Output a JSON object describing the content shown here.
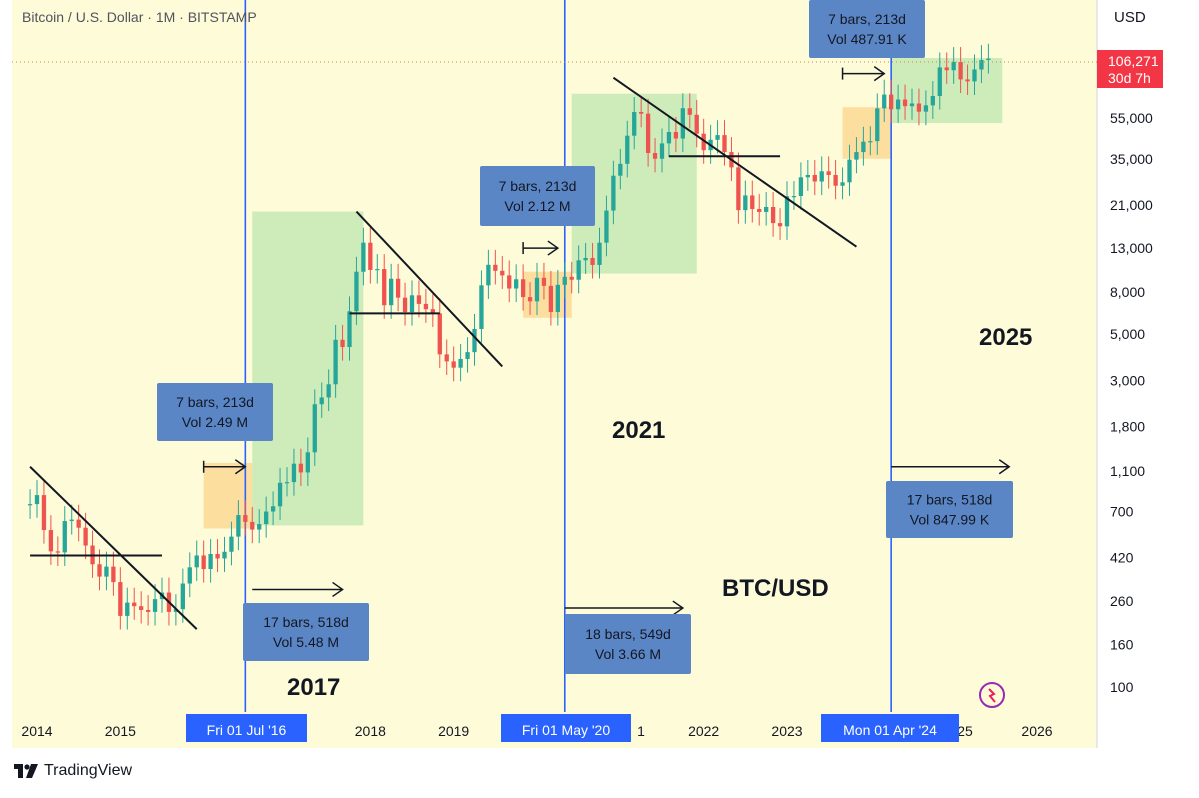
{
  "header": {
    "symbol_line": "Bitcoin / U.S. Dollar · 1M · BITSTAMP",
    "currency": "USD"
  },
  "price_badge": {
    "price": "106,271",
    "countdown": "30d 7h",
    "color": "#f23645"
  },
  "footer": {
    "brand": "TradingView"
  },
  "colors": {
    "background": "#fefbd8",
    "up": "#26a69a",
    "down": "#ef5350",
    "green_box": "#c6e9b4",
    "orange_box": "#fbd995",
    "vline": "#2962ff",
    "label_box": "#5b86c6",
    "date_badge": "#2962ff"
  },
  "chart_data": {
    "type": "candlestick",
    "title": "BTC/USD",
    "xlabel": "",
    "ylabel": "",
    "y_scale": "log",
    "price_axis_ticks": [
      "55,000",
      "35,000",
      "21,000",
      "13,000",
      "8,000",
      "5,000",
      "3,000",
      "1,800",
      "1,100",
      "700",
      "420",
      "260",
      "160",
      "100"
    ],
    "time_axis_ticks": [
      "2014",
      "2015",
      "2018",
      "2019",
      "2022",
      "2023",
      "2026"
    ],
    "time_axis_badges": [
      "Fri 01 Jul '16",
      "Fri 01 May '20",
      "Mon 01 Apr '24"
    ],
    "partial_time_ticks": [
      "1",
      "25"
    ],
    "vertical_lines": [
      "2016-07",
      "2020-05",
      "2024-04"
    ],
    "last_price": 106271,
    "cycle_labels": [
      "2017",
      "2021",
      "2025"
    ],
    "measure_labels": [
      {
        "line1": "7 bars, 213d",
        "line2": "Vol 2.49 M"
      },
      {
        "line1": "17 bars, 518d",
        "line2": "Vol 5.48 M"
      },
      {
        "line1": "7 bars, 213d",
        "line2": "Vol 2.12 M"
      },
      {
        "line1": "18 bars, 549d",
        "line2": "Vol 3.66 M"
      },
      {
        "line1": "7 bars, 213d",
        "line2": "Vol 487.91 K"
      },
      {
        "line1": "17 bars, 518d",
        "line2": "Vol 847.99 K"
      }
    ],
    "candles_up_colored": "green",
    "candles_down_colored": "red",
    "monthly_closes": [
      {
        "t": "2013-12",
        "o": 750,
        "c": 760
      },
      {
        "t": "2014-01",
        "o": 760,
        "c": 840
      },
      {
        "t": "2014-02",
        "o": 840,
        "c": 570
      },
      {
        "t": "2014-03",
        "o": 570,
        "c": 450
      },
      {
        "t": "2014-04",
        "o": 450,
        "c": 445
      },
      {
        "t": "2014-05",
        "o": 445,
        "c": 630
      },
      {
        "t": "2014-06",
        "o": 630,
        "c": 640
      },
      {
        "t": "2014-07",
        "o": 640,
        "c": 585
      },
      {
        "t": "2014-08",
        "o": 585,
        "c": 480
      },
      {
        "t": "2014-09",
        "o": 480,
        "c": 390
      },
      {
        "t": "2014-10",
        "o": 390,
        "c": 340
      },
      {
        "t": "2014-11",
        "o": 340,
        "c": 380
      },
      {
        "t": "2014-12",
        "o": 380,
        "c": 320
      },
      {
        "t": "2015-01",
        "o": 320,
        "c": 220
      },
      {
        "t": "2015-02",
        "o": 220,
        "c": 255
      },
      {
        "t": "2015-03",
        "o": 255,
        "c": 245
      },
      {
        "t": "2015-04",
        "o": 245,
        "c": 235
      },
      {
        "t": "2015-05",
        "o": 235,
        "c": 230
      },
      {
        "t": "2015-06",
        "o": 230,
        "c": 265
      },
      {
        "t": "2015-07",
        "o": 265,
        "c": 285
      },
      {
        "t": "2015-08",
        "o": 285,
        "c": 230
      },
      {
        "t": "2015-09",
        "o": 230,
        "c": 237
      },
      {
        "t": "2015-10",
        "o": 237,
        "c": 315
      },
      {
        "t": "2015-11",
        "o": 315,
        "c": 377
      },
      {
        "t": "2015-12",
        "o": 377,
        "c": 430
      },
      {
        "t": "2016-01",
        "o": 430,
        "c": 370
      },
      {
        "t": "2016-02",
        "o": 370,
        "c": 437
      },
      {
        "t": "2016-03",
        "o": 437,
        "c": 416
      },
      {
        "t": "2016-04",
        "o": 416,
        "c": 448
      },
      {
        "t": "2016-05",
        "o": 448,
        "c": 530
      },
      {
        "t": "2016-06",
        "o": 530,
        "c": 673
      },
      {
        "t": "2016-07",
        "o": 673,
        "c": 624
      },
      {
        "t": "2016-08",
        "o": 624,
        "c": 573
      },
      {
        "t": "2016-09",
        "o": 573,
        "c": 609
      },
      {
        "t": "2016-10",
        "o": 609,
        "c": 700
      },
      {
        "t": "2016-11",
        "o": 700,
        "c": 742
      },
      {
        "t": "2016-12",
        "o": 742,
        "c": 963
      },
      {
        "t": "2017-01",
        "o": 963,
        "c": 970
      },
      {
        "t": "2017-02",
        "o": 970,
        "c": 1190
      },
      {
        "t": "2017-03",
        "o": 1190,
        "c": 1080
      },
      {
        "t": "2017-04",
        "o": 1080,
        "c": 1350
      },
      {
        "t": "2017-05",
        "o": 1350,
        "c": 2300
      },
      {
        "t": "2017-06",
        "o": 2300,
        "c": 2480
      },
      {
        "t": "2017-07",
        "o": 2480,
        "c": 2870
      },
      {
        "t": "2017-08",
        "o": 2870,
        "c": 4700
      },
      {
        "t": "2017-09",
        "o": 4700,
        "c": 4340
      },
      {
        "t": "2017-10",
        "o": 4340,
        "c": 6450
      },
      {
        "t": "2017-11",
        "o": 6450,
        "c": 10000
      },
      {
        "t": "2017-12",
        "o": 10000,
        "c": 13800
      },
      {
        "t": "2018-01",
        "o": 13800,
        "c": 10200
      },
      {
        "t": "2018-02",
        "o": 10200,
        "c": 10300
      },
      {
        "t": "2018-03",
        "o": 10300,
        "c": 6900
      },
      {
        "t": "2018-04",
        "o": 6900,
        "c": 9250
      },
      {
        "t": "2018-05",
        "o": 9250,
        "c": 7500
      },
      {
        "t": "2018-06",
        "o": 7500,
        "c": 6400
      },
      {
        "t": "2018-07",
        "o": 6400,
        "c": 7700
      },
      {
        "t": "2018-08",
        "o": 7700,
        "c": 7000
      },
      {
        "t": "2018-09",
        "o": 7000,
        "c": 6600
      },
      {
        "t": "2018-10",
        "o": 6600,
        "c": 6300
      },
      {
        "t": "2018-11",
        "o": 6300,
        "c": 4000
      },
      {
        "t": "2018-12",
        "o": 4000,
        "c": 3700
      },
      {
        "t": "2019-01",
        "o": 3700,
        "c": 3450
      },
      {
        "t": "2019-02",
        "o": 3450,
        "c": 3800
      },
      {
        "t": "2019-03",
        "o": 3800,
        "c": 4100
      },
      {
        "t": "2019-04",
        "o": 4100,
        "c": 5300
      },
      {
        "t": "2019-05",
        "o": 5300,
        "c": 8600
      },
      {
        "t": "2019-06",
        "o": 8600,
        "c": 10800
      },
      {
        "t": "2019-07",
        "o": 10800,
        "c": 10100
      },
      {
        "t": "2019-08",
        "o": 10100,
        "c": 9600
      },
      {
        "t": "2019-09",
        "o": 9600,
        "c": 8300
      },
      {
        "t": "2019-10",
        "o": 8300,
        "c": 9200
      },
      {
        "t": "2019-11",
        "o": 9200,
        "c": 7550
      },
      {
        "t": "2019-12",
        "o": 7550,
        "c": 7200
      },
      {
        "t": "2020-01",
        "o": 7200,
        "c": 9350
      },
      {
        "t": "2020-02",
        "o": 9350,
        "c": 8550
      },
      {
        "t": "2020-03",
        "o": 8550,
        "c": 6400
      },
      {
        "t": "2020-04",
        "o": 6400,
        "c": 8650
      },
      {
        "t": "2020-05",
        "o": 8650,
        "c": 9450
      },
      {
        "t": "2020-06",
        "o": 9450,
        "c": 9150
      },
      {
        "t": "2020-07",
        "o": 9150,
        "c": 11350
      },
      {
        "t": "2020-08",
        "o": 11350,
        "c": 11650
      },
      {
        "t": "2020-09",
        "o": 11650,
        "c": 10780
      },
      {
        "t": "2020-10",
        "o": 10780,
        "c": 13800
      },
      {
        "t": "2020-11",
        "o": 13800,
        "c": 19700
      },
      {
        "t": "2020-12",
        "o": 19700,
        "c": 29000
      },
      {
        "t": "2021-01",
        "o": 29000,
        "c": 33100
      },
      {
        "t": "2021-02",
        "o": 33100,
        "c": 45200
      },
      {
        "t": "2021-03",
        "o": 45200,
        "c": 58800
      },
      {
        "t": "2021-04",
        "o": 58800,
        "c": 57700
      },
      {
        "t": "2021-05",
        "o": 57700,
        "c": 37300
      },
      {
        "t": "2021-06",
        "o": 37300,
        "c": 35000
      },
      {
        "t": "2021-07",
        "o": 35000,
        "c": 41500
      },
      {
        "t": "2021-08",
        "o": 41500,
        "c": 47100
      },
      {
        "t": "2021-09",
        "o": 47100,
        "c": 43800
      },
      {
        "t": "2021-10",
        "o": 43800,
        "c": 61300
      },
      {
        "t": "2021-11",
        "o": 61300,
        "c": 57000
      },
      {
        "t": "2021-12",
        "o": 57000,
        "c": 46200
      },
      {
        "t": "2022-01",
        "o": 46200,
        "c": 38500
      },
      {
        "t": "2022-02",
        "o": 38500,
        "c": 43200
      },
      {
        "t": "2022-03",
        "o": 43200,
        "c": 45500
      },
      {
        "t": "2022-04",
        "o": 45500,
        "c": 37700
      },
      {
        "t": "2022-05",
        "o": 37700,
        "c": 31800
      },
      {
        "t": "2022-06",
        "o": 31800,
        "c": 19800
      },
      {
        "t": "2022-07",
        "o": 19800,
        "c": 23300
      },
      {
        "t": "2022-08",
        "o": 23300,
        "c": 20050
      },
      {
        "t": "2022-09",
        "o": 20050,
        "c": 19400
      },
      {
        "t": "2022-10",
        "o": 19400,
        "c": 20500
      },
      {
        "t": "2022-11",
        "o": 20500,
        "c": 17150
      },
      {
        "t": "2022-12",
        "o": 17150,
        "c": 16550
      },
      {
        "t": "2023-01",
        "o": 16550,
        "c": 23100
      },
      {
        "t": "2023-02",
        "o": 23100,
        "c": 23150
      },
      {
        "t": "2023-03",
        "o": 23150,
        "c": 28500
      },
      {
        "t": "2023-04",
        "o": 28500,
        "c": 29250
      },
      {
        "t": "2023-05",
        "o": 29250,
        "c": 27200
      },
      {
        "t": "2023-06",
        "o": 27200,
        "c": 30450
      },
      {
        "t": "2023-07",
        "o": 30450,
        "c": 29250
      },
      {
        "t": "2023-08",
        "o": 29250,
        "c": 25950
      },
      {
        "t": "2023-09",
        "o": 25950,
        "c": 26950
      },
      {
        "t": "2023-10",
        "o": 26950,
        "c": 34650
      },
      {
        "t": "2023-11",
        "o": 34650,
        "c": 37700
      },
      {
        "t": "2023-12",
        "o": 37700,
        "c": 42300
      },
      {
        "t": "2024-01",
        "o": 42300,
        "c": 42550
      },
      {
        "t": "2024-02",
        "o": 42550,
        "c": 61200
      },
      {
        "t": "2024-03",
        "o": 61200,
        "c": 71300
      },
      {
        "t": "2024-04",
        "o": 71300,
        "c": 60600
      },
      {
        "t": "2024-05",
        "o": 60600,
        "c": 67500
      },
      {
        "t": "2024-06",
        "o": 67500,
        "c": 62700
      },
      {
        "t": "2024-07",
        "o": 62700,
        "c": 64600
      },
      {
        "t": "2024-08",
        "o": 64600,
        "c": 59000
      },
      {
        "t": "2024-09",
        "o": 59000,
        "c": 63300
      },
      {
        "t": "2024-10",
        "o": 63300,
        "c": 70200
      },
      {
        "t": "2024-11",
        "o": 70200,
        "c": 96400
      },
      {
        "t": "2024-12",
        "o": 96400,
        "c": 93400
      },
      {
        "t": "2025-01",
        "o": 93400,
        "c": 102400
      },
      {
        "t": "2025-02",
        "o": 102400,
        "c": 84350
      },
      {
        "t": "2025-03",
        "o": 84350,
        "c": 82550
      },
      {
        "t": "2025-04",
        "o": 82550,
        "c": 94200
      },
      {
        "t": "2025-05",
        "o": 94200,
        "c": 104600
      },
      {
        "t": "2025-06",
        "o": 104600,
        "c": 106271
      }
    ]
  }
}
